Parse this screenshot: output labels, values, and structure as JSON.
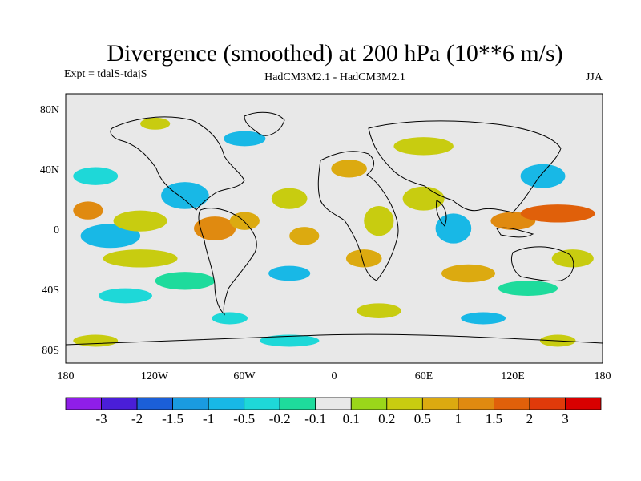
{
  "title": "Divergence (smoothed) at 200 hPa (10**6 m/s)",
  "experiment": "Expt = tdalS-tdajS",
  "models": "HadCM3M2.1 - HadCM3M2.1",
  "season": "JJA",
  "colors": {
    "land_gray": "#e8e8e8",
    "background": "#ffffff",
    "coast": "#000000"
  },
  "lat_labels": [
    "80N",
    "40N",
    "0",
    "40S",
    "80S"
  ],
  "lon_labels": [
    "180",
    "120W",
    "60W",
    "0",
    "60E",
    "120E",
    "180"
  ],
  "colorbar": {
    "labels": [
      "-3",
      "-2",
      "-1.5",
      "-1",
      "-0.5",
      "-0.2",
      "-0.1",
      "0.1",
      "0.2",
      "0.5",
      "1",
      "1.5",
      "2",
      "3"
    ],
    "colors": [
      "#8f1ee8",
      "#4a1ed8",
      "#1b5fd8",
      "#1a9be0",
      "#18b8e6",
      "#1ed8d8",
      "#1edb9c",
      "#e8e8e8",
      "#9ad61a",
      "#c8cc10",
      "#dcaa10",
      "#e08a10",
      "#e0600a",
      "#e03a0a",
      "#d80000"
    ]
  },
  "blobs": [
    {
      "lon": -165,
      "lat": 12,
      "rlon": 10,
      "rlat": 6,
      "cat": 11
    },
    {
      "lon": -150,
      "lat": -5,
      "rlon": 20,
      "rlat": 8,
      "cat": 4
    },
    {
      "lon": -160,
      "lat": 35,
      "rlon": 15,
      "rlat": 6,
      "cat": 5
    },
    {
      "lon": -130,
      "lat": 5,
      "rlon": 18,
      "rlat": 7,
      "cat": 9
    },
    {
      "lon": -100,
      "lat": 22,
      "rlon": 16,
      "rlat": 9,
      "cat": 4
    },
    {
      "lon": -80,
      "lat": 0,
      "rlon": 14,
      "rlat": 8,
      "cat": 11
    },
    {
      "lon": -60,
      "lat": 5,
      "rlon": 10,
      "rlat": 6,
      "cat": 10
    },
    {
      "lon": -130,
      "lat": -20,
      "rlon": 25,
      "rlat": 6,
      "cat": 9
    },
    {
      "lon": -100,
      "lat": -35,
      "rlon": 20,
      "rlat": 6,
      "cat": 6
    },
    {
      "lon": -140,
      "lat": -45,
      "rlon": 18,
      "rlat": 5,
      "cat": 5
    },
    {
      "lon": -30,
      "lat": 20,
      "rlon": 12,
      "rlat": 7,
      "cat": 9
    },
    {
      "lon": -20,
      "lat": -5,
      "rlon": 10,
      "rlat": 6,
      "cat": 10
    },
    {
      "lon": -30,
      "lat": -30,
      "rlon": 14,
      "rlat": 5,
      "cat": 4
    },
    {
      "lon": 10,
      "lat": 40,
      "rlon": 12,
      "rlat": 6,
      "cat": 10
    },
    {
      "lon": 30,
      "lat": 5,
      "rlon": 10,
      "rlat": 10,
      "cat": 9
    },
    {
      "lon": 20,
      "lat": -20,
      "rlon": 12,
      "rlat": 6,
      "cat": 10
    },
    {
      "lon": 60,
      "lat": 20,
      "rlon": 14,
      "rlat": 8,
      "cat": 9
    },
    {
      "lon": 80,
      "lat": 0,
      "rlon": 12,
      "rlat": 10,
      "cat": 4
    },
    {
      "lon": 90,
      "lat": -30,
      "rlon": 18,
      "rlat": 6,
      "cat": 10
    },
    {
      "lon": 120,
      "lat": 5,
      "rlon": 15,
      "rlat": 6,
      "cat": 11
    },
    {
      "lon": 150,
      "lat": 10,
      "rlon": 25,
      "rlat": 6,
      "cat": 12
    },
    {
      "lon": 140,
      "lat": 35,
      "rlon": 15,
      "rlat": 8,
      "cat": 4
    },
    {
      "lon": 160,
      "lat": -20,
      "rlon": 14,
      "rlat": 6,
      "cat": 9
    },
    {
      "lon": 130,
      "lat": -40,
      "rlon": 20,
      "rlat": 5,
      "cat": 6
    },
    {
      "lon": 60,
      "lat": 55,
      "rlon": 20,
      "rlat": 6,
      "cat": 9
    },
    {
      "lon": -60,
      "lat": 60,
      "rlon": 14,
      "rlat": 5,
      "cat": 4
    },
    {
      "lon": -120,
      "lat": 70,
      "rlon": 10,
      "rlat": 4,
      "cat": 9
    },
    {
      "lon": 30,
      "lat": -55,
      "rlon": 15,
      "rlat": 5,
      "cat": 9
    },
    {
      "lon": -70,
      "lat": -60,
      "rlon": 12,
      "rlat": 4,
      "cat": 5
    },
    {
      "lon": 100,
      "lat": -60,
      "rlon": 15,
      "rlat": 4,
      "cat": 4
    },
    {
      "lon": -160,
      "lat": -75,
      "rlon": 15,
      "rlat": 4,
      "cat": 9
    },
    {
      "lon": -30,
      "lat": -75,
      "rlon": 20,
      "rlat": 4,
      "cat": 5
    },
    {
      "lon": 150,
      "lat": -75,
      "rlon": 12,
      "rlat": 4,
      "cat": 9
    }
  ]
}
